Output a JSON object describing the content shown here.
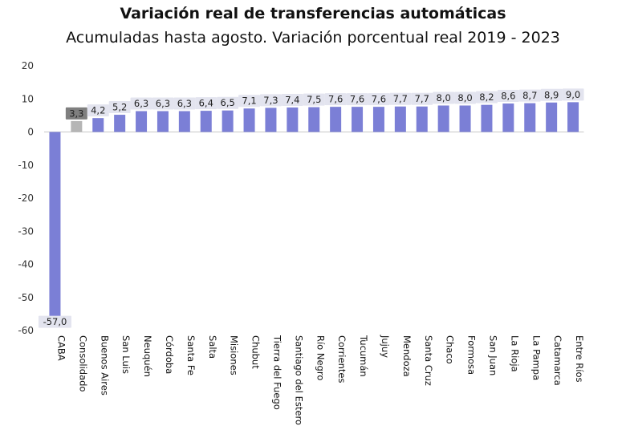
{
  "chart_data": {
    "type": "bar",
    "title": "Variación real de transferencias automáticas",
    "subtitle": "Acumuladas hasta agosto. Variación porcentual real 2019 - 2023",
    "xlabel": "",
    "ylabel": "",
    "ylim": [
      -60,
      20
    ],
    "yticks": [
      20,
      10,
      0,
      -10,
      -20,
      -30,
      -40,
      -50,
      -60
    ],
    "categories": [
      "CABA",
      "Consolidado",
      "Buenos Aires",
      "San Luis",
      "Neuquén",
      "Córdoba",
      "Santa Fe",
      "Salta",
      "Misiones",
      "Chubut",
      "Tierra del Fuego",
      "Santiago del Estero",
      "Río Negro",
      "Corrientes",
      "Tucumán",
      "Jujuy",
      "Mendoza",
      "Santa Cruz",
      "Chaco",
      "Formosa",
      "San Juan",
      "La Rioja",
      "La Pampa",
      "Catamarca",
      "Entre Ríos"
    ],
    "values": [
      -57.0,
      3.3,
      4.2,
      5.2,
      6.3,
      6.3,
      6.3,
      6.4,
      6.5,
      7.1,
      7.3,
      7.4,
      7.5,
      7.6,
      7.6,
      7.6,
      7.7,
      7.7,
      8.0,
      8.0,
      8.2,
      8.6,
      8.7,
      8.9,
      9.0
    ],
    "labels": [
      "-57,0",
      "3,3",
      "4,2",
      "5,2",
      "6,3",
      "6,3",
      "6,3",
      "6,4",
      "6,5",
      "7,1",
      "7,3",
      "7,4",
      "7,5",
      "7,6",
      "7,6",
      "7,6",
      "7,7",
      "7,7",
      "8,0",
      "8,0",
      "8,2",
      "8,6",
      "8,7",
      "8,9",
      "9,0"
    ],
    "highlight_index": 1,
    "colors": {
      "bar": "#7b7fd6",
      "highlight_bar": "#b5b5b5",
      "highlight_label_bg": "#7f7f7f",
      "highlight_label_text": "#ffffff",
      "label_bg": "#e3e4ef",
      "negative_label_text": "#c0143c",
      "baseline": "#c8c8c8"
    },
    "grid": false,
    "legend": "none"
  }
}
